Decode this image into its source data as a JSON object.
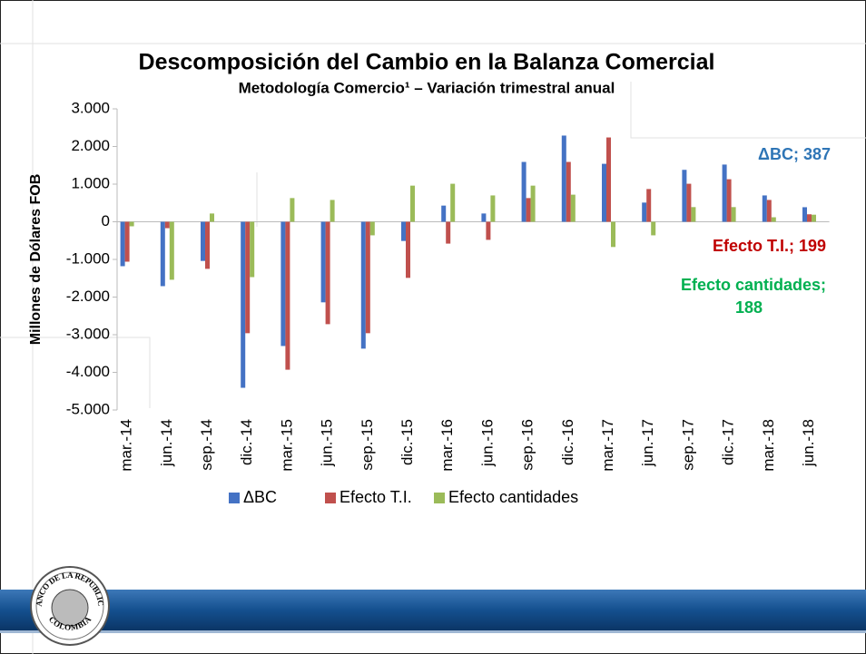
{
  "logo": {
    "top": "BANCO DE LA REPUBLICA",
    "bottom": "COLOMBIA"
  },
  "chart_data": {
    "type": "bar",
    "title": "Descomposición del Cambio en la Balanza Comercial",
    "subtitle": "Metodología Comercio¹ – Variación trimestral anual",
    "ylabel": "Millones de Dólares FOB",
    "categories": [
      "mar.-14",
      "jun.-14",
      "sep.-14",
      "dic.-14",
      "mar.-15",
      "jun.-15",
      "sep.-15",
      "dic.-15",
      "mar.-16",
      "jun.-16",
      "sep.-16",
      "dic.-16",
      "mar.-17",
      "jun.-17",
      "sep.-17",
      "dic.-17",
      "mar.-18",
      "jun.-18"
    ],
    "series": [
      {
        "name": "ΔBC",
        "color": "#4472c4",
        "values": [
          -1180,
          -1710,
          -1040,
          -4410,
          -3300,
          -2140,
          -3370,
          -510,
          430,
          220,
          1590,
          2290,
          1540,
          510,
          1380,
          1520,
          700,
          387
        ]
      },
      {
        "name": "Efecto T.I.",
        "color": "#c0504d",
        "values": [
          -1060,
          -170,
          -1250,
          -2960,
          -3930,
          -2720,
          -2960,
          -1490,
          -580,
          -480,
          630,
          1590,
          2240,
          870,
          1010,
          1130,
          580,
          199
        ]
      },
      {
        "name": "Efecto cantidades",
        "color": "#9bbb59",
        "values": [
          -120,
          -1540,
          220,
          -1470,
          630,
          580,
          -360,
          960,
          1010,
          700,
          960,
          720,
          -670,
          -360,
          390,
          390,
          120,
          188
        ]
      }
    ],
    "annotations": [
      {
        "text": "ΔBC; 387",
        "color": "#2e75b6"
      },
      {
        "text": "Efecto T.I.; 199",
        "color": "#c00000"
      },
      {
        "text": "Efecto cantidades;",
        "color": "#00b050"
      },
      {
        "text": "188",
        "color": "#00b050"
      }
    ],
    "ylim": [
      -5000,
      3000
    ],
    "yticks": [
      {
        "value": -5000,
        "label": "-5.000"
      },
      {
        "value": -4000,
        "label": "-4.000"
      },
      {
        "value": -3000,
        "label": "-3.000"
      },
      {
        "value": -2000,
        "label": "-2.000"
      },
      {
        "value": -1000,
        "label": "-1.000"
      },
      0,
      {
        "value": 1000,
        "label": "1.000"
      },
      {
        "value": 2000,
        "label": "2.000"
      },
      {
        "value": 3000,
        "label": "3.000"
      }
    ],
    "grid": false,
    "legend": "bottom"
  }
}
